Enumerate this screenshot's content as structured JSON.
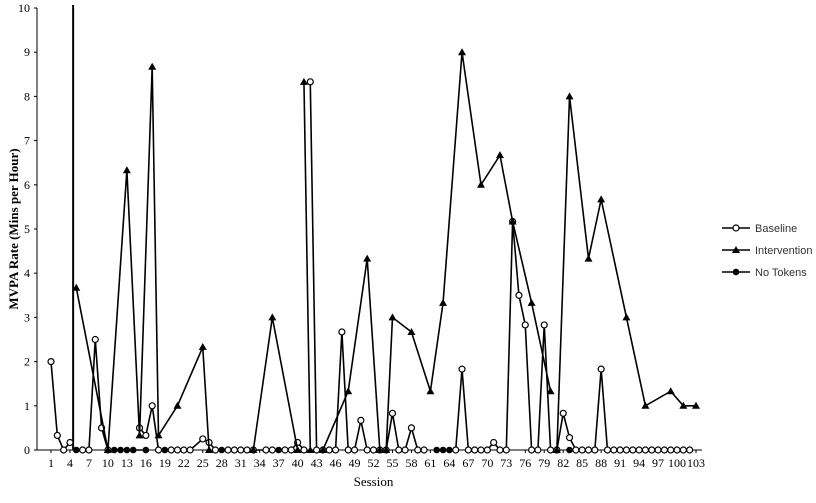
{
  "chart_data": {
    "type": "line",
    "title": "",
    "xlabel": "Session",
    "ylabel": "MVPA Rate (Mins per Hour)",
    "xlim": [
      1,
      103
    ],
    "ylim": [
      0,
      10
    ],
    "x_ticks": [
      1,
      4,
      7,
      10,
      13,
      16,
      19,
      22,
      25,
      28,
      31,
      34,
      37,
      40,
      43,
      46,
      49,
      52,
      55,
      58,
      61,
      64,
      67,
      70,
      73,
      76,
      79,
      82,
      85,
      88,
      91,
      94,
      97,
      100,
      103
    ],
    "y_ticks": [
      0,
      1,
      2,
      3,
      4,
      5,
      6,
      7,
      8,
      9,
      10
    ],
    "grid": false,
    "legend_position": "right",
    "phase_line_x": 4.5,
    "colors": {
      "line": "#000000",
      "axis": "#000000",
      "legend_text": "#333333"
    },
    "series": [
      {
        "name": "Baseline",
        "marker": "open-circle",
        "segments": [
          [
            [
              1,
              2.0
            ],
            [
              2,
              0.33
            ],
            [
              3,
              0
            ],
            [
              4,
              0.17
            ]
          ],
          [
            [
              6,
              0
            ],
            [
              7,
              0
            ],
            [
              8,
              2.5
            ],
            [
              9,
              0.5
            ],
            [
              10,
              0
            ]
          ],
          [
            [
              15,
              0.5
            ],
            [
              16,
              0.33
            ],
            [
              17,
              1.0
            ],
            [
              18,
              0
            ]
          ],
          [
            [
              20,
              0
            ],
            [
              21,
              0
            ],
            [
              22,
              0
            ],
            [
              23,
              0
            ],
            [
              25,
              0.25
            ],
            [
              26,
              0.17
            ],
            [
              27,
              0
            ],
            [
              29,
              0
            ],
            [
              30,
              0
            ],
            [
              31,
              0
            ],
            [
              32,
              0
            ],
            [
              33,
              0
            ],
            [
              35,
              0
            ],
            [
              36,
              0
            ]
          ],
          [
            [
              38,
              0
            ],
            [
              39,
              0
            ],
            [
              40,
              0.17
            ],
            [
              41,
              0
            ]
          ],
          [
            [
              42,
              8.33
            ],
            [
              43,
              0
            ],
            [
              44,
              0
            ],
            [
              45,
              0
            ],
            [
              46,
              0
            ],
            [
              47,
              2.67
            ],
            [
              48,
              0
            ],
            [
              49,
              0
            ],
            [
              50,
              0.67
            ],
            [
              51,
              0
            ],
            [
              52,
              0
            ],
            [
              53,
              0
            ],
            [
              54,
              0
            ],
            [
              55,
              0.83
            ],
            [
              56,
              0
            ],
            [
              57,
              0
            ],
            [
              58,
              0.5
            ],
            [
              59,
              0
            ],
            [
              60,
              0
            ]
          ],
          [
            [
              65,
              0
            ],
            [
              66,
              1.83
            ],
            [
              67,
              0
            ],
            [
              68,
              0
            ],
            [
              69,
              0
            ],
            [
              70,
              0
            ],
            [
              71,
              0.17
            ],
            [
              72,
              0
            ],
            [
              73,
              0
            ],
            [
              74,
              5.17
            ],
            [
              75,
              3.5
            ],
            [
              76,
              2.83
            ],
            [
              77,
              0
            ],
            [
              78,
              0
            ],
            [
              79,
              2.83
            ],
            [
              80,
              0
            ],
            [
              81,
              0
            ],
            [
              82,
              0.83
            ],
            [
              83,
              0.28
            ],
            [
              84,
              0
            ],
            [
              85,
              0
            ],
            [
              86,
              0
            ],
            [
              87,
              0
            ],
            [
              88,
              1.83
            ],
            [
              89,
              0
            ],
            [
              90,
              0
            ],
            [
              91,
              0
            ],
            [
              92,
              0
            ],
            [
              93,
              0
            ],
            [
              94,
              0
            ],
            [
              95,
              0
            ],
            [
              96,
              0
            ],
            [
              97,
              0
            ],
            [
              98,
              0
            ],
            [
              99,
              0
            ],
            [
              100,
              0
            ],
            [
              101,
              0
            ],
            [
              102,
              0
            ]
          ]
        ]
      },
      {
        "name": "Intervention",
        "marker": "filled-triangle",
        "segments": [
          [
            [
              5,
              3.67
            ],
            [
              10,
              0
            ],
            [
              13,
              6.33
            ],
            [
              15,
              0.33
            ],
            [
              17,
              8.67
            ],
            [
              18,
              0.33
            ],
            [
              21,
              1.0
            ],
            [
              25,
              2.33
            ],
            [
              26,
              0
            ]
          ],
          [
            [
              33,
              0
            ],
            [
              36,
              3.0
            ],
            [
              40,
              0
            ]
          ],
          [
            [
              41,
              8.33
            ],
            [
              42,
              0
            ]
          ],
          [
            [
              44,
              0
            ],
            [
              48,
              1.33
            ],
            [
              51,
              4.33
            ],
            [
              53,
              0
            ]
          ],
          [
            [
              54,
              0
            ],
            [
              55,
              3.0
            ],
            [
              58,
              2.67
            ],
            [
              61,
              1.33
            ],
            [
              63,
              3.33
            ],
            [
              66,
              9.0
            ],
            [
              69,
              6.0
            ],
            [
              72,
              6.67
            ],
            [
              74,
              5.17
            ],
            [
              77,
              3.33
            ],
            [
              80,
              1.33
            ]
          ],
          [
            [
              81,
              0
            ],
            [
              83,
              8.0
            ],
            [
              86,
              4.33
            ],
            [
              88,
              5.67
            ],
            [
              92,
              3.0
            ],
            [
              95,
              1.0
            ],
            [
              99,
              1.33
            ],
            [
              101,
              1.0
            ],
            [
              103,
              1.0
            ]
          ]
        ]
      },
      {
        "name": "No Tokens",
        "marker": "filled-circle",
        "segments": [
          [
            [
              5,
              0
            ],
            [
              6,
              0
            ],
            [
              7,
              0
            ]
          ],
          [
            [
              11,
              0
            ],
            [
              12,
              0
            ],
            [
              13,
              0
            ],
            [
              14,
              0
            ],
            [
              16,
              0
            ]
          ],
          [
            [
              19,
              0
            ],
            [
              20,
              0
            ]
          ],
          [
            [
              27,
              0
            ],
            [
              28,
              0
            ]
          ],
          [
            [
              32,
              0
            ],
            [
              33,
              0
            ]
          ],
          [
            [
              37,
              0
            ],
            [
              38,
              0
            ]
          ],
          [
            [
              43,
              0
            ],
            [
              45,
              0
            ]
          ],
          [
            [
              49,
              0
            ]
          ],
          [
            [
              52,
              0
            ]
          ],
          [
            [
              56,
              0
            ],
            [
              57,
              0
            ]
          ],
          [
            [
              59,
              0
            ]
          ],
          [
            [
              62,
              0
            ],
            [
              63,
              0
            ],
            [
              64,
              0
            ]
          ],
          [
            [
              67,
              0
            ],
            [
              68,
              0
            ],
            [
              69,
              0
            ]
          ],
          [
            [
              72,
              0
            ]
          ],
          [
            [
              80,
              0
            ],
            [
              81,
              0
            ]
          ],
          [
            [
              83,
              0
            ],
            [
              84,
              0
            ],
            [
              85,
              0
            ],
            [
              86,
              0
            ]
          ],
          [
            [
              89,
              0
            ]
          ],
          [
            [
              93,
              0
            ],
            [
              94,
              0
            ],
            [
              95,
              0
            ],
            [
              96,
              0
            ]
          ],
          [
            [
              99,
              0
            ],
            [
              100,
              0
            ],
            [
              101,
              0
            ]
          ]
        ]
      }
    ]
  }
}
